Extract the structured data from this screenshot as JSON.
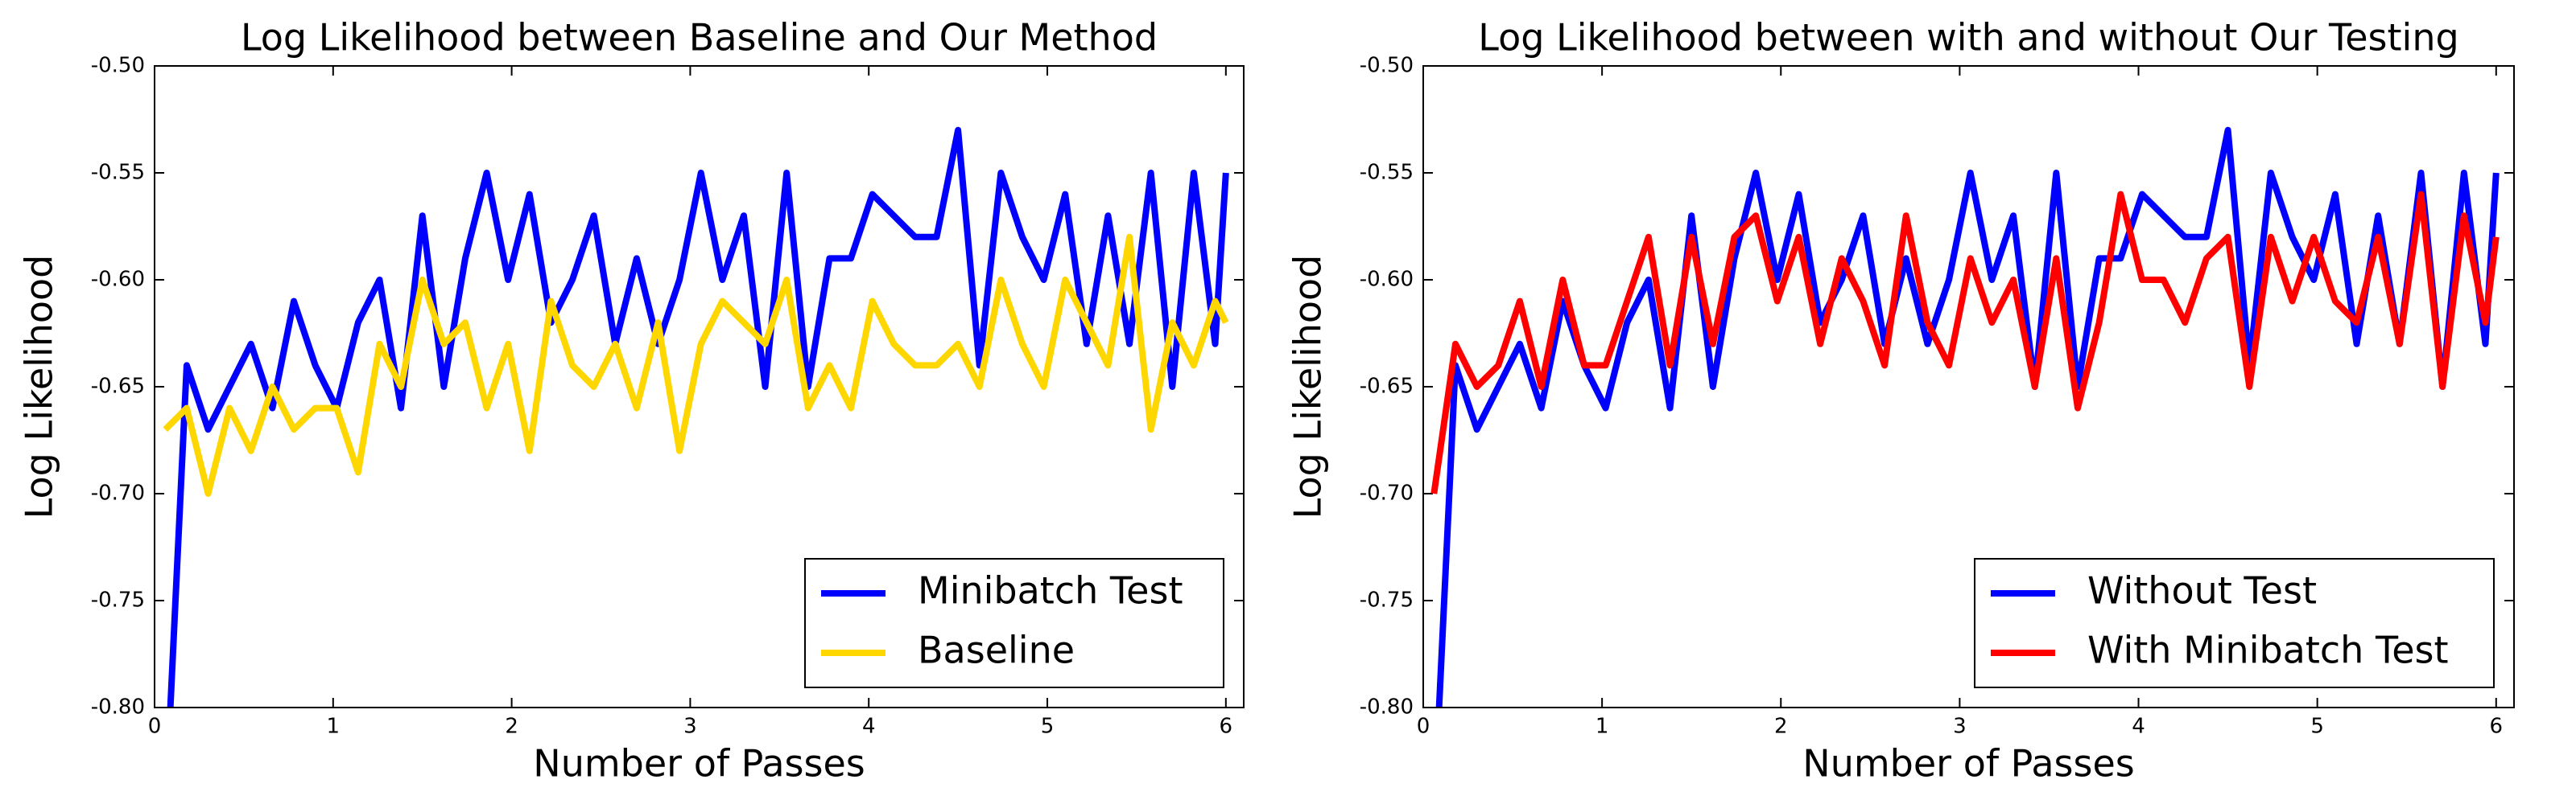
{
  "chart_data": [
    {
      "type": "line",
      "title": "Log Likelihood between Baseline and Our Method",
      "x_label": "Number of Passes",
      "y_label": "Log Likelihood",
      "x": [
        0.06,
        0.18,
        0.3,
        0.42,
        0.54,
        0.66,
        0.78,
        0.9,
        1.02,
        1.14,
        1.26,
        1.38,
        1.5,
        1.62,
        1.74,
        1.86,
        1.98,
        2.1,
        2.22,
        2.34,
        2.46,
        2.58,
        2.7,
        2.82,
        2.94,
        3.06,
        3.18,
        3.3,
        3.42,
        3.54,
        3.66,
        3.78,
        3.9,
        4.02,
        4.14,
        4.26,
        4.38,
        4.5,
        4.62,
        4.74,
        4.86,
        4.98,
        5.1,
        5.22,
        5.34,
        5.46,
        5.58,
        5.7,
        5.82,
        5.94,
        6.0
      ],
      "series": [
        {
          "name": "Minibatch Test",
          "color": "#0000ff",
          "values": [
            -0.85,
            -0.64,
            -0.67,
            -0.65,
            -0.63,
            -0.66,
            -0.61,
            -0.64,
            -0.66,
            -0.62,
            -0.6,
            -0.66,
            -0.57,
            -0.65,
            -0.59,
            -0.55,
            -0.6,
            -0.56,
            -0.62,
            -0.6,
            -0.57,
            -0.63,
            -0.59,
            -0.63,
            -0.6,
            -0.55,
            -0.6,
            -0.57,
            -0.65,
            -0.55,
            -0.65,
            -0.59,
            -0.59,
            -0.56,
            -0.57,
            -0.58,
            -0.58,
            -0.53,
            -0.64,
            -0.55,
            -0.58,
            -0.6,
            -0.56,
            -0.63,
            -0.57,
            -0.63,
            -0.55,
            -0.65,
            -0.55,
            -0.63,
            -0.55
          ]
        },
        {
          "name": "Baseline",
          "color": "#ffd700",
          "values": [
            -0.67,
            -0.66,
            -0.7,
            -0.66,
            -0.68,
            -0.65,
            -0.67,
            -0.66,
            -0.66,
            -0.69,
            -0.63,
            -0.65,
            -0.6,
            -0.63,
            -0.62,
            -0.66,
            -0.63,
            -0.68,
            -0.61,
            -0.64,
            -0.65,
            -0.63,
            -0.66,
            -0.62,
            -0.68,
            -0.63,
            -0.61,
            -0.62,
            -0.63,
            -0.6,
            -0.66,
            -0.64,
            -0.66,
            -0.61,
            -0.63,
            -0.64,
            -0.64,
            -0.63,
            -0.65,
            -0.6,
            -0.63,
            -0.65,
            -0.6,
            -0.62,
            -0.64,
            -0.58,
            -0.67,
            -0.62,
            -0.64,
            -0.61,
            -0.62
          ]
        }
      ],
      "xlim": [
        0,
        6.1
      ],
      "ylim": [
        -0.8,
        -0.5
      ],
      "xticks": [
        0,
        1,
        2,
        3,
        4,
        5,
        6
      ],
      "yticks": [
        {
          "value": -0.8,
          "label": "-0.80"
        },
        {
          "value": -0.75,
          "label": "-0.75"
        },
        {
          "value": -0.7,
          "label": "-0.70"
        },
        {
          "value": -0.65,
          "label": "-0.65"
        },
        {
          "value": -0.6,
          "label": "-0.60"
        },
        {
          "value": -0.55,
          "label": "-0.55"
        },
        {
          "value": -0.5,
          "label": "-0.50"
        }
      ],
      "legend": "lower right"
    },
    {
      "type": "line",
      "title": "Log Likelihood between with and without Our Testing",
      "x_label": "Number of Passes",
      "y_label": "Log Likelihood",
      "x": [
        0.06,
        0.18,
        0.3,
        0.42,
        0.54,
        0.66,
        0.78,
        0.9,
        1.02,
        1.14,
        1.26,
        1.38,
        1.5,
        1.62,
        1.74,
        1.86,
        1.98,
        2.1,
        2.22,
        2.34,
        2.46,
        2.58,
        2.7,
        2.82,
        2.94,
        3.06,
        3.18,
        3.3,
        3.42,
        3.54,
        3.66,
        3.78,
        3.9,
        4.02,
        4.14,
        4.26,
        4.38,
        4.5,
        4.62,
        4.74,
        4.86,
        4.98,
        5.1,
        5.22,
        5.34,
        5.46,
        5.58,
        5.7,
        5.82,
        5.94,
        6.0
      ],
      "series": [
        {
          "name": "Without Test",
          "color": "#0000ff",
          "values": [
            -0.85,
            -0.64,
            -0.67,
            -0.65,
            -0.63,
            -0.66,
            -0.61,
            -0.64,
            -0.66,
            -0.62,
            -0.6,
            -0.66,
            -0.57,
            -0.65,
            -0.59,
            -0.55,
            -0.6,
            -0.56,
            -0.62,
            -0.6,
            -0.57,
            -0.63,
            -0.59,
            -0.63,
            -0.6,
            -0.55,
            -0.6,
            -0.57,
            -0.65,
            -0.55,
            -0.65,
            -0.59,
            -0.59,
            -0.56,
            -0.57,
            -0.58,
            -0.58,
            -0.53,
            -0.64,
            -0.55,
            -0.58,
            -0.6,
            -0.56,
            -0.63,
            -0.57,
            -0.63,
            -0.55,
            -0.65,
            -0.55,
            -0.63,
            -0.55
          ]
        },
        {
          "name": "With Minibatch Test",
          "color": "#ff0000",
          "values": [
            -0.7,
            -0.63,
            -0.65,
            -0.64,
            -0.61,
            -0.65,
            -0.6,
            -0.64,
            -0.64,
            -0.61,
            -0.58,
            -0.64,
            -0.58,
            -0.63,
            -0.58,
            -0.57,
            -0.61,
            -0.58,
            -0.63,
            -0.59,
            -0.61,
            -0.64,
            -0.57,
            -0.62,
            -0.64,
            -0.59,
            -0.62,
            -0.6,
            -0.65,
            -0.59,
            -0.66,
            -0.62,
            -0.56,
            -0.6,
            -0.6,
            -0.62,
            -0.59,
            -0.58,
            -0.65,
            -0.58,
            -0.61,
            -0.58,
            -0.61,
            -0.62,
            -0.58,
            -0.63,
            -0.56,
            -0.65,
            -0.57,
            -0.62,
            -0.58
          ]
        }
      ],
      "xlim": [
        0,
        6.1
      ],
      "ylim": [
        -0.8,
        -0.5
      ],
      "xticks": [
        0,
        1,
        2,
        3,
        4,
        5,
        6
      ],
      "yticks": [
        {
          "value": -0.8,
          "label": "-0.80"
        },
        {
          "value": -0.75,
          "label": "-0.75"
        },
        {
          "value": -0.7,
          "label": "-0.70"
        },
        {
          "value": -0.65,
          "label": "-0.65"
        },
        {
          "value": -0.6,
          "label": "-0.60"
        },
        {
          "value": -0.55,
          "label": "-0.55"
        },
        {
          "value": -0.5,
          "label": "-0.50"
        }
      ],
      "legend": "lower right"
    }
  ]
}
